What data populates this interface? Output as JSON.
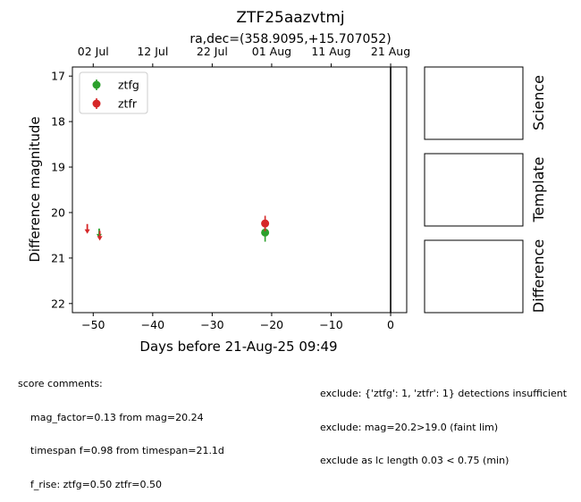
{
  "chart_data": {
    "type": "scatter",
    "title": "ZTF25aazvtmj",
    "subtitle": "ra,dec=(358.9095,+15.707052)",
    "xlabel": "Days before 21-Aug-25 09:49",
    "ylabel": "Difference magnitude",
    "xlim": [
      -53.5,
      2.7
    ],
    "ylim": [
      22.2,
      16.8
    ],
    "y_inverted": true,
    "x_ticks": [
      -50,
      -40,
      -30,
      -20,
      -10,
      0
    ],
    "x_tick_labels": [
      "−50",
      "−40",
      "−30",
      "−20",
      "−10",
      "0"
    ],
    "y_ticks": [
      17,
      18,
      19,
      20,
      21,
      22
    ],
    "y_tick_labels": [
      "17",
      "18",
      "19",
      "20",
      "21",
      "22"
    ],
    "top_axis": {
      "ticks": [
        -50,
        -40,
        -30,
        -20,
        -10,
        0
      ],
      "labels": [
        "02 Jul",
        "12 Jul",
        "22 Jul",
        "01 Aug",
        "11 Aug",
        "21 Aug"
      ]
    },
    "vline_x": 0,
    "grid": false,
    "legend_position": "top-left",
    "series": [
      {
        "name": "ztfg",
        "color": "#2ca02c",
        "detections": [
          {
            "x": -21.1,
            "y": 20.44,
            "err": 0.2
          }
        ],
        "upper_limits": [
          {
            "x": -49.0,
            "y": 20.45
          }
        ]
      },
      {
        "name": "ztfr",
        "color": "#d62728",
        "detections": [
          {
            "x": -21.1,
            "y": 20.24,
            "err": 0.17
          }
        ],
        "upper_limits": [
          {
            "x": -51.0,
            "y": 20.35
          },
          {
            "x": -48.9,
            "y": 20.5
          }
        ]
      }
    ]
  },
  "cutouts": [
    {
      "label": "Science"
    },
    {
      "label": "Template"
    },
    {
      "label": "Difference"
    }
  ],
  "score_comments": {
    "heading": "score comments:",
    "lines": [
      "mag_factor=0.13 from mag=20.24",
      "timespan f=0.98 from timespan=21.1d",
      "f_rise: ztfg=0.50 ztfr=0.50"
    ]
  },
  "exclude_comments": {
    "lines": [
      "exclude: {'ztfg': 1, 'ztfr': 1} detections insufficient",
      "exclude: mag=20.2>19.0 (faint lim)",
      "exclude as lc length 0.03 < 0.75 (min)"
    ]
  }
}
